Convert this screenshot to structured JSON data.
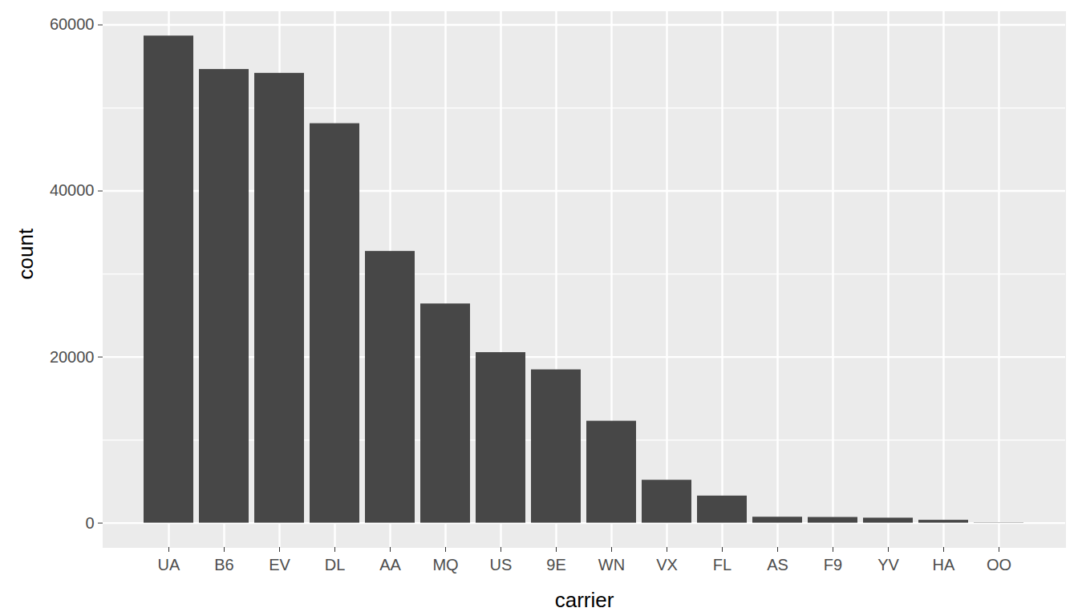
{
  "chart_data": {
    "type": "bar",
    "x_label": "carrier",
    "y_label": "count",
    "categories": [
      "UA",
      "B6",
      "EV",
      "DL",
      "AA",
      "MQ",
      "US",
      "9E",
      "WN",
      "VX",
      "FL",
      "AS",
      "F9",
      "YV",
      "HA",
      "OO"
    ],
    "values": [
      58665,
      54635,
      54173,
      48110,
      32729,
      26397,
      20536,
      18460,
      12275,
      5162,
      3260,
      714,
      685,
      601,
      342,
      32
    ],
    "color": "#474747",
    "ylim": [
      -2933,
      61598
    ],
    "yticks": [
      0,
      20000,
      40000,
      60000
    ],
    "grid": true
  }
}
